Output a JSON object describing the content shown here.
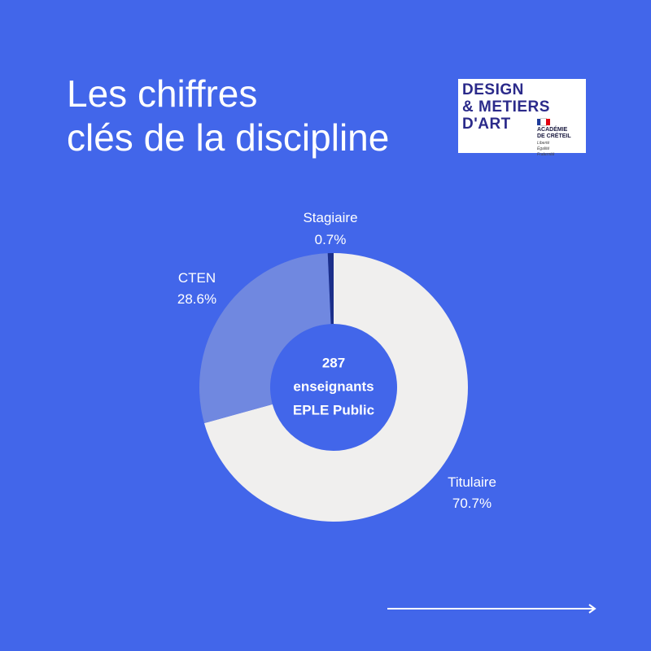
{
  "header": {
    "title_line1": "Les chiffres",
    "title_line2": "clés de la discipline"
  },
  "logo": {
    "line1": "DESIGN",
    "line2": "& METIERS",
    "line3": "D'ART",
    "academy_line1": "ACADÉMIE",
    "academy_line2": "DE CRÉTEIL",
    "motto_line1": "Liberté",
    "motto_line2": "Égalité",
    "motto_line3": "Fraternité"
  },
  "chart_data": {
    "type": "pie",
    "subtype": "donut",
    "center_text": [
      "287",
      "enseignants",
      "EPLE Public"
    ],
    "slices": [
      {
        "label": "Titulaire",
        "value": 70.7,
        "display": "70.7%",
        "color": "#f0efee"
      },
      {
        "label": "CTEN",
        "value": 28.6,
        "display": "28.6%",
        "color": "#7088e0"
      },
      {
        "label": "Stagiaire",
        "value": 0.7,
        "display": "0.7%",
        "color": "#1c2f8a"
      }
    ]
  },
  "colors": {
    "background": "#4266ea",
    "text": "#ffffff",
    "logo_text": "#2b2a8a"
  },
  "icons": {
    "next": "arrow-right-icon"
  }
}
